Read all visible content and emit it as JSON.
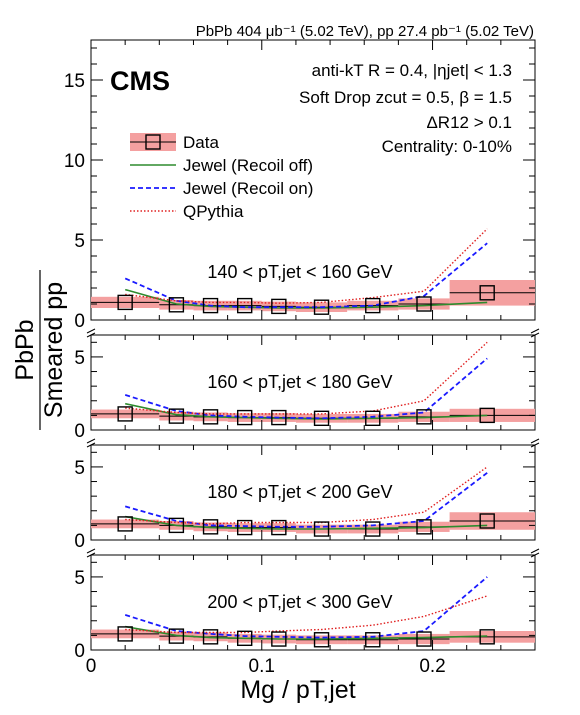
{
  "header": {
    "lumi_text": "PbPb 404 μb⁻¹ (5.02 TeV), pp 27.4 pb⁻¹ (5.02 TeV)",
    "experiment": "CMS",
    "info_lines": [
      "anti-kT R = 0.4, |ηjet| < 1.3",
      "Soft Drop zcut = 0.5, β = 1.5",
      "ΔR12 > 0.1",
      "Centrality: 0-10%"
    ]
  },
  "legend": {
    "placement": "upper-left",
    "entries": [
      {
        "label": "Data",
        "style": "data",
        "color": "#000000",
        "band": "#f08080"
      },
      {
        "label": "Jewel (Recoil off)",
        "style": "solid",
        "color": "#2e8b2e"
      },
      {
        "label": "Jewel (Recoil on)",
        "style": "dashed",
        "color": "#1a1aff"
      },
      {
        "label": "QPythia",
        "style": "dotted",
        "color": "#e02020"
      }
    ]
  },
  "axes": {
    "xlabel": "Mg / pT,jet",
    "ylabel_num": "PbPb",
    "ylabel_den": "Smeared pp",
    "xticks": [
      "0",
      "0.1",
      "0.2"
    ],
    "top_yticks": [
      "0",
      "5",
      "10",
      "15"
    ],
    "sub_yticks": [
      "0",
      "5"
    ]
  },
  "chart_data": {
    "type": "line",
    "xlim": [
      0,
      0.26
    ],
    "top_panel_ylim": [
      0,
      17.5
    ],
    "sub_panel_ylim": [
      0,
      6.5
    ],
    "x": [
      0.02,
      0.05,
      0.07,
      0.09,
      0.11,
      0.135,
      0.165,
      0.195,
      0.232
    ],
    "x_bin_edges": [
      0.0,
      0.04,
      0.06,
      0.08,
      0.1,
      0.12,
      0.15,
      0.18,
      0.21,
      0.26
    ],
    "panels": [
      {
        "label": "140 < pT,jet < 160 GeV",
        "data": [
          1.1,
          0.95,
          0.9,
          0.9,
          0.85,
          0.8,
          0.9,
          1.0,
          1.7
        ],
        "sys_err": [
          0.35,
          0.3,
          0.3,
          0.3,
          0.3,
          0.3,
          0.3,
          0.35,
          0.8
        ],
        "series": [
          {
            "name": "Jewel (Recoil off)",
            "values": [
              1.9,
              1.0,
              0.85,
              0.8,
              0.75,
              0.75,
              0.8,
              0.9,
              1.1
            ]
          },
          {
            "name": "Jewel (Recoil on)",
            "values": [
              2.6,
              1.2,
              0.9,
              0.8,
              0.8,
              0.8,
              0.9,
              1.5,
              4.8
            ]
          },
          {
            "name": "QPythia",
            "values": [
              1.6,
              1.2,
              1.1,
              1.1,
              1.05,
              1.1,
              1.4,
              1.8,
              5.7
            ]
          }
        ]
      },
      {
        "label": "160 < pT,jet < 180 GeV",
        "data": [
          1.1,
          0.95,
          0.9,
          0.85,
          0.85,
          0.8,
          0.8,
          0.9,
          1.0
        ],
        "sys_err": [
          0.3,
          0.3,
          0.3,
          0.3,
          0.3,
          0.3,
          0.3,
          0.35,
          0.45
        ],
        "series": [
          {
            "name": "Jewel (Recoil off)",
            "values": [
              1.8,
              1.05,
              0.9,
              0.85,
              0.8,
              0.75,
              0.8,
              0.85,
              1.0
            ]
          },
          {
            "name": "Jewel (Recoil on)",
            "values": [
              2.4,
              1.3,
              1.0,
              0.9,
              0.85,
              0.8,
              0.9,
              1.2,
              4.9
            ]
          },
          {
            "name": "QPythia",
            "values": [
              1.5,
              1.2,
              1.1,
              1.1,
              1.1,
              1.1,
              1.3,
              2.0,
              6.0
            ]
          }
        ]
      },
      {
        "label": "180 < pT,jet < 200 GeV",
        "data": [
          1.1,
          1.0,
          0.9,
          0.85,
          0.85,
          0.75,
          0.75,
          0.9,
          1.3
        ],
        "sys_err": [
          0.3,
          0.3,
          0.3,
          0.3,
          0.3,
          0.3,
          0.3,
          0.35,
          0.6
        ],
        "series": [
          {
            "name": "Jewel (Recoil off)",
            "values": [
              1.6,
              1.0,
              0.85,
              0.8,
              0.75,
              0.75,
              0.8,
              0.85,
              1.0
            ]
          },
          {
            "name": "Jewel (Recoil on)",
            "values": [
              2.3,
              1.3,
              1.0,
              0.95,
              0.9,
              0.9,
              1.0,
              1.3,
              4.6
            ]
          },
          {
            "name": "QPythia",
            "values": [
              1.4,
              1.2,
              1.1,
              1.2,
              1.2,
              1.2,
              1.4,
              1.9,
              5.0
            ]
          }
        ]
      },
      {
        "label": "200 < pT,jet < 300 GeV",
        "data": [
          1.1,
          0.95,
          0.9,
          0.8,
          0.75,
          0.7,
          0.7,
          0.75,
          0.9
        ],
        "sys_err": [
          0.3,
          0.3,
          0.3,
          0.3,
          0.3,
          0.3,
          0.3,
          0.35,
          0.4
        ],
        "series": [
          {
            "name": "Jewel (Recoil off)",
            "values": [
              1.6,
              1.0,
              0.85,
              0.8,
              0.75,
              0.75,
              0.8,
              0.85,
              0.95
            ]
          },
          {
            "name": "Jewel (Recoil on)",
            "values": [
              2.4,
              1.3,
              1.1,
              0.95,
              0.9,
              0.85,
              0.9,
              1.3,
              5.0
            ]
          },
          {
            "name": "QPythia",
            "values": [
              1.4,
              1.2,
              1.2,
              1.2,
              1.3,
              1.4,
              1.7,
              2.3,
              3.7
            ]
          }
        ]
      }
    ]
  }
}
